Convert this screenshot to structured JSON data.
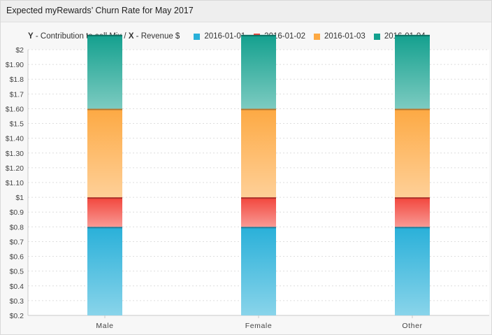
{
  "title": "Expected myRewards’ Churn Rate for May 2017",
  "axis_note": {
    "y_key": "Y",
    "y_text": " - Contribution to sell Mix / ",
    "x_key": "X",
    "x_text": " - Revenue $"
  },
  "chart_data": {
    "type": "bar",
    "stacked": true,
    "categories": [
      "Male",
      "Female",
      "Other"
    ],
    "ylim": [
      0.2,
      2.0
    ],
    "yticks": [
      {
        "value": 2.0,
        "label": "$2"
      },
      {
        "value": 1.9,
        "label": "$1.90"
      },
      {
        "value": 1.8,
        "label": "$1.8"
      },
      {
        "value": 1.7,
        "label": "$1.7"
      },
      {
        "value": 1.6,
        "label": "$1.60"
      },
      {
        "value": 1.5,
        "label": "$1.5"
      },
      {
        "value": 1.4,
        "label": "$1.40"
      },
      {
        "value": 1.3,
        "label": "$1.30"
      },
      {
        "value": 1.2,
        "label": "$1.20"
      },
      {
        "value": 1.1,
        "label": "$1.10"
      },
      {
        "value": 1.0,
        "label": "$1"
      },
      {
        "value": 0.9,
        "label": "$0.9"
      },
      {
        "value": 0.8,
        "label": "$0.8"
      },
      {
        "value": 0.7,
        "label": "$0.7"
      },
      {
        "value": 0.6,
        "label": "$0.6"
      },
      {
        "value": 0.5,
        "label": "$0.5"
      },
      {
        "value": 0.4,
        "label": "$0.4"
      },
      {
        "value": 0.3,
        "label": "$0.3"
      },
      {
        "value": 0.2,
        "label": "$0.2"
      }
    ],
    "series": [
      {
        "name": "2016-01-01",
        "color": "#29b0d9",
        "values": [
          0.6,
          0.6,
          0.6
        ]
      },
      {
        "name": "2016-01-02",
        "color": "#f2453c",
        "values": [
          0.2,
          0.2,
          0.2
        ]
      },
      {
        "name": "2016-01-03",
        "color": "#fda943",
        "values": [
          0.6,
          0.6,
          0.6
        ]
      },
      {
        "name": "2016-01-04",
        "color": "#13a08e",
        "values": [
          0.5,
          0.5,
          0.5
        ]
      }
    ],
    "grid": true,
    "legend_position": "top"
  }
}
